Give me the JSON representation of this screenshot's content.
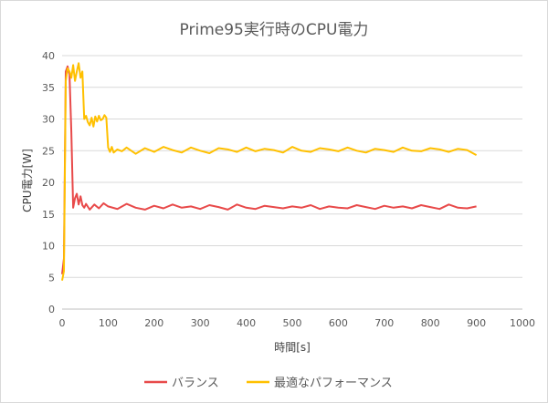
{
  "chart_data": {
    "type": "line",
    "title": "Prime95実行時のCPU電力",
    "xlabel": "時間[s]",
    "ylabel": "CPU電力[W]",
    "xlim": [
      0,
      1000
    ],
    "ylim": [
      0,
      40
    ],
    "xticks": [
      "0",
      "100",
      "200",
      "300",
      "400",
      "500",
      "600",
      "700",
      "800",
      "900",
      "1000"
    ],
    "yticks": [
      "0",
      "5",
      "10",
      "15",
      "20",
      "25",
      "30",
      "35",
      "40"
    ],
    "grid": "horizontal",
    "legend": "bottom",
    "series": [
      {
        "name": "バランス",
        "color": "#e84a4a",
        "x": [
          0,
          4,
          8,
          12,
          16,
          20,
          24,
          28,
          32,
          36,
          40,
          44,
          48,
          52,
          60,
          70,
          80,
          90,
          100,
          120,
          140,
          160,
          180,
          200,
          220,
          240,
          260,
          280,
          300,
          320,
          340,
          360,
          380,
          400,
          420,
          440,
          460,
          480,
          500,
          520,
          540,
          560,
          580,
          600,
          620,
          640,
          660,
          680,
          700,
          720,
          740,
          760,
          780,
          800,
          820,
          840,
          860,
          880,
          900
        ],
        "y": [
          5.5,
          8,
          37.5,
          38.3,
          37,
          28,
          16,
          17.5,
          18.2,
          16.5,
          17.8,
          16.4,
          16,
          16.6,
          15.7,
          16.5,
          15.9,
          16.7,
          16.2,
          15.8,
          16.6,
          16,
          15.7,
          16.3,
          15.9,
          16.5,
          16,
          16.2,
          15.8,
          16.4,
          16.1,
          15.7,
          16.5,
          16,
          15.8,
          16.3,
          16.1,
          15.9,
          16.2,
          16,
          16.4,
          15.8,
          16.2,
          16,
          15.9,
          16.4,
          16.1,
          15.8,
          16.3,
          16,
          16.2,
          15.9,
          16.4,
          16.1,
          15.8,
          16.5,
          16,
          15.9,
          16.2
        ]
      },
      {
        "name": "最適なパフォーマンス",
        "color": "#ffc000",
        "x": [
          0,
          4,
          8,
          12,
          16,
          20,
          24,
          28,
          32,
          36,
          40,
          44,
          48,
          52,
          56,
          60,
          64,
          68,
          72,
          76,
          80,
          84,
          88,
          92,
          96,
          100,
          104,
          108,
          112,
          120,
          130,
          140,
          160,
          180,
          200,
          220,
          240,
          260,
          280,
          300,
          320,
          340,
          360,
          380,
          400,
          420,
          440,
          460,
          480,
          500,
          520,
          540,
          560,
          580,
          600,
          620,
          640,
          660,
          680,
          700,
          720,
          740,
          760,
          780,
          800,
          820,
          840,
          860,
          880,
          900
        ],
        "y": [
          4.5,
          6,
          36,
          38,
          37.5,
          36.5,
          38.5,
          36,
          37.5,
          38.8,
          36.5,
          37.5,
          30,
          30.5,
          29.5,
          29,
          30.2,
          28.8,
          30.4,
          29.6,
          30.5,
          29.8,
          30,
          30.6,
          30.2,
          25.5,
          24.8,
          25.6,
          24.7,
          25.2,
          24.9,
          25.5,
          24.5,
          25.4,
          24.8,
          25.6,
          25.1,
          24.7,
          25.5,
          25,
          24.6,
          25.4,
          25.2,
          24.8,
          25.5,
          24.9,
          25.3,
          25.1,
          24.7,
          25.6,
          25,
          24.8,
          25.4,
          25.2,
          24.9,
          25.5,
          25,
          24.7,
          25.3,
          25.1,
          24.8,
          25.5,
          25,
          24.9,
          25.4,
          25.2,
          24.8,
          25.3,
          25.1,
          24.3
        ]
      }
    ]
  }
}
